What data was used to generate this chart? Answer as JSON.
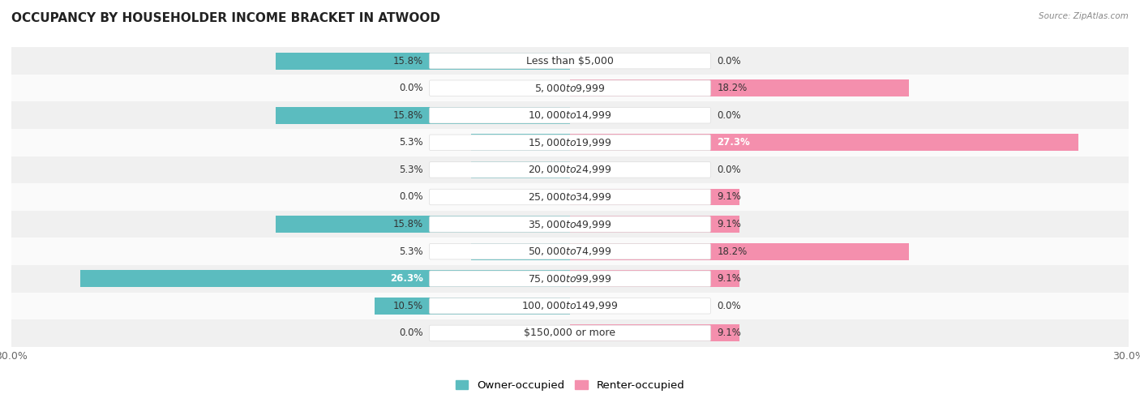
{
  "title": "OCCUPANCY BY HOUSEHOLDER INCOME BRACKET IN ATWOOD",
  "source": "Source: ZipAtlas.com",
  "categories": [
    "Less than $5,000",
    "$5,000 to $9,999",
    "$10,000 to $14,999",
    "$15,000 to $19,999",
    "$20,000 to $24,999",
    "$25,000 to $34,999",
    "$35,000 to $49,999",
    "$50,000 to $74,999",
    "$75,000 to $99,999",
    "$100,000 to $149,999",
    "$150,000 or more"
  ],
  "owner_values": [
    15.8,
    0.0,
    15.8,
    5.3,
    5.3,
    0.0,
    15.8,
    5.3,
    26.3,
    10.5,
    0.0
  ],
  "renter_values": [
    0.0,
    18.2,
    0.0,
    27.3,
    0.0,
    9.1,
    9.1,
    18.2,
    9.1,
    0.0,
    9.1
  ],
  "owner_color": "#5BBCBF",
  "renter_color": "#F48FAD",
  "xlim": 30.0,
  "background_color": "#FFFFFF",
  "row_bg_even": "#F0F0F0",
  "row_bg_odd": "#FAFAFA",
  "title_fontsize": 11,
  "label_fontsize": 8.5,
  "cat_fontsize": 9,
  "val_fontsize": 8.5,
  "bar_height": 0.62,
  "axis_label_color": "#666666",
  "text_color": "#333333"
}
